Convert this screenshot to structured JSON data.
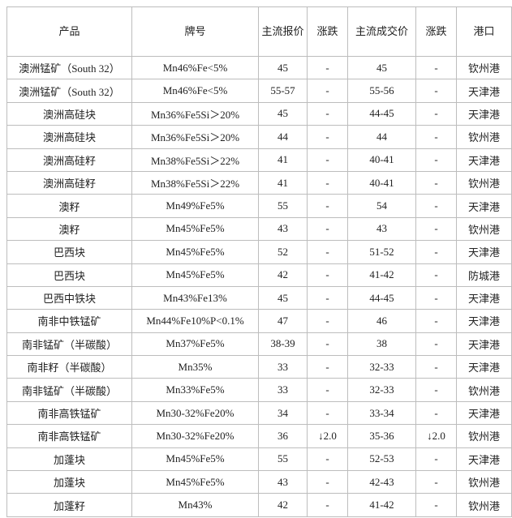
{
  "table": {
    "header": [
      "产品",
      "牌号",
      "主流报价",
      "涨跌",
      "主流成交价",
      "涨跌",
      "港口"
    ],
    "rows": [
      [
        "澳洲锰矿（South 32）",
        "Mn46%Fe<5%",
        "45",
        "-",
        "45",
        "-",
        "钦州港"
      ],
      [
        "澳洲锰矿（South 32）",
        "Mn46%Fe<5%",
        "55-57",
        "-",
        "55-56",
        "-",
        "天津港"
      ],
      [
        "澳洲高硅块",
        "Mn36%Fe5Si＞20%",
        "45",
        "-",
        "44-45",
        "-",
        "天津港"
      ],
      [
        "澳洲高硅块",
        "Mn36%Fe5Si＞20%",
        "44",
        "-",
        "44",
        "-",
        "钦州港"
      ],
      [
        "澳洲高硅籽",
        "Mn38%Fe5Si＞22%",
        "41",
        "-",
        "40-41",
        "-",
        "天津港"
      ],
      [
        "澳洲高硅籽",
        "Mn38%Fe5Si＞22%",
        "41",
        "-",
        "40-41",
        "-",
        "钦州港"
      ],
      [
        "澳籽",
        "Mn49%Fe5%",
        "55",
        "-",
        "54",
        "-",
        "天津港"
      ],
      [
        "澳籽",
        "Mn45%Fe5%",
        "43",
        "-",
        "43",
        "-",
        "钦州港"
      ],
      [
        "巴西块",
        "Mn45%Fe5%",
        "52",
        "-",
        "51-52",
        "-",
        "天津港"
      ],
      [
        "巴西块",
        "Mn45%Fe5%",
        "42",
        "-",
        "41-42",
        "-",
        "防城港"
      ],
      [
        "巴西中铁块",
        "Mn43%Fe13%",
        "45",
        "-",
        "44-45",
        "-",
        "天津港"
      ],
      [
        "南非中铁锰矿",
        "Mn44%Fe10%P<0.1%",
        "47",
        "-",
        "46",
        "-",
        "天津港"
      ],
      [
        "南非锰矿（半碳酸）",
        "Mn37%Fe5%",
        "38-39",
        "-",
        "38",
        "-",
        "天津港"
      ],
      [
        "南非籽（半碳酸）",
        "Mn35%",
        "33",
        "-",
        "32-33",
        "-",
        "天津港"
      ],
      [
        "南非锰矿（半碳酸）",
        "Mn33%Fe5%",
        "33",
        "-",
        "32-33",
        "-",
        "钦州港"
      ],
      [
        "南非高铁锰矿",
        "Mn30-32%Fe20%",
        "34",
        "-",
        "33-34",
        "-",
        "天津港"
      ],
      [
        "南非高铁锰矿",
        "Mn30-32%Fe20%",
        "36",
        "↓2.0",
        "35-36",
        "↓2.0",
        "钦州港"
      ],
      [
        "加蓬块",
        "Mn45%Fe5%",
        "55",
        "-",
        "52-53",
        "-",
        "天津港"
      ],
      [
        "加蓬块",
        "Mn45%Fe5%",
        "43",
        "-",
        "42-43",
        "-",
        "钦州港"
      ],
      [
        "加蓬籽",
        "Mn43%",
        "42",
        "-",
        "41-42",
        "-",
        "钦州港"
      ]
    ]
  }
}
